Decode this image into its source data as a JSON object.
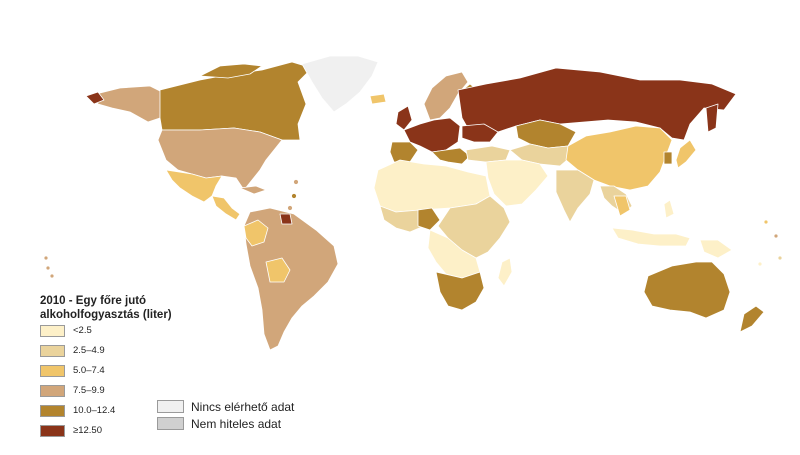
{
  "legend": {
    "title": "2010 - Egy főre jutó alkoholfogyasztás (liter)",
    "classes": [
      {
        "label": "<2.5",
        "color": "#fdf0c8"
      },
      {
        "label": "2.5–4.9",
        "color": "#ead39c"
      },
      {
        "label": "5.0–7.4",
        "color": "#f0c56a"
      },
      {
        "label": "7.5–9.9",
        "color": "#d1a67a"
      },
      {
        "label": "10.0–12.4",
        "color": "#b2842e"
      },
      {
        "label": "≥12.50",
        "color": "#8a3419"
      }
    ],
    "extra": [
      {
        "label": "Nincs elérhető adat",
        "color": "#f0f0f0"
      },
      {
        "label": "Nem hiteles adat",
        "color": "#d0d0d0"
      }
    ]
  }
}
